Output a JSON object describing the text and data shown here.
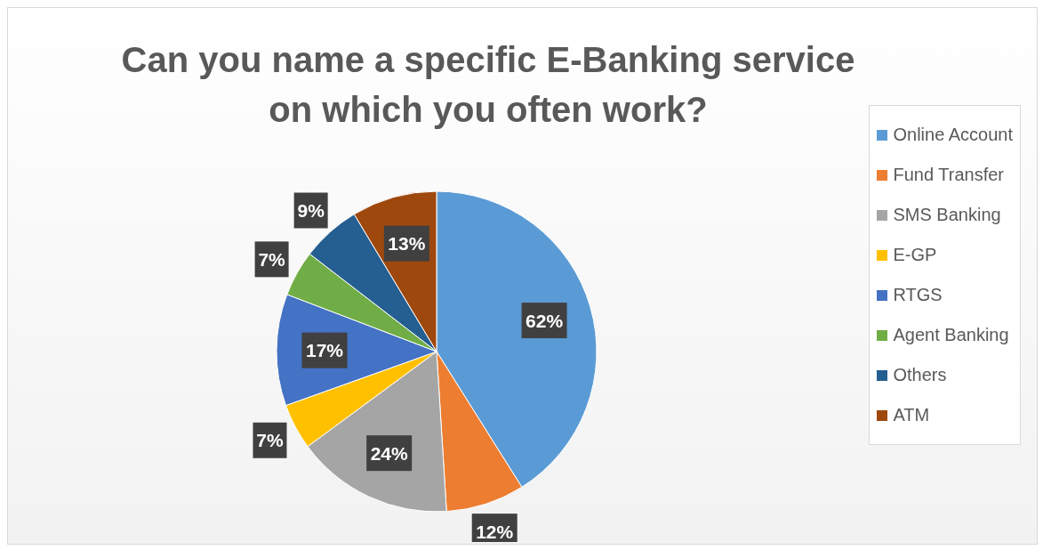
{
  "chart_data": {
    "type": "pie",
    "title": "Can you name a specific E-Banking service on which you often work?",
    "categories": [
      "Online Account",
      "Fund Transfer",
      "SMS Banking",
      "E-GP",
      "RTGS",
      "Agent Banking",
      "Others",
      "ATM"
    ],
    "values": [
      62,
      12,
      24,
      7,
      17,
      7,
      9,
      13
    ],
    "colors": [
      "#5b9bd5",
      "#ed7d31",
      "#a5a5a5",
      "#ffc000",
      "#4472c4",
      "#70ad47",
      "#255e91",
      "#9e480e"
    ],
    "value_labels": [
      "62%",
      "12%",
      "24%",
      "7%",
      "17%",
      "7%",
      "9%",
      "13%"
    ],
    "legend": "right"
  }
}
